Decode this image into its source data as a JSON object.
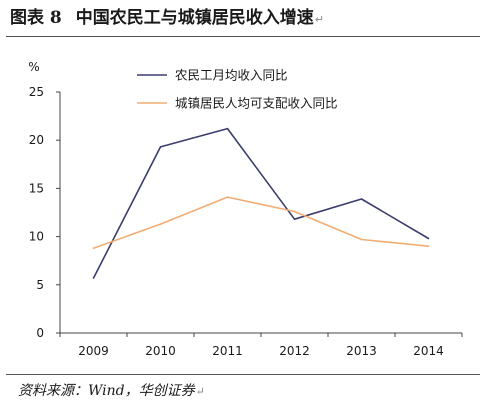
{
  "figure": {
    "label": "图表 8",
    "title": "中国农民工与城镇居民收入增速",
    "return_mark": "↵",
    "source": "资料来源：Wind，华创证券"
  },
  "chart_data": {
    "type": "line",
    "title": "中国农民工与城镇居民收入增速",
    "y_unit_label": "%",
    "xlabel": "",
    "ylabel": "",
    "categories": [
      "2009",
      "2010",
      "2011",
      "2012",
      "2013",
      "2014"
    ],
    "ylim": [
      0,
      25
    ],
    "yticks": [
      0,
      5,
      10,
      15,
      20,
      25
    ],
    "grid": false,
    "legend_position": "top-center",
    "series": [
      {
        "name": "农民工月均收入同比",
        "color": "#3b3d6e",
        "values": [
          5.7,
          19.3,
          21.2,
          11.8,
          13.9,
          9.8
        ]
      },
      {
        "name": "城镇居民人均可支配收入同比",
        "color": "#f2ad72",
        "values": [
          8.8,
          11.3,
          14.1,
          12.6,
          9.7,
          9.0
        ]
      }
    ]
  }
}
